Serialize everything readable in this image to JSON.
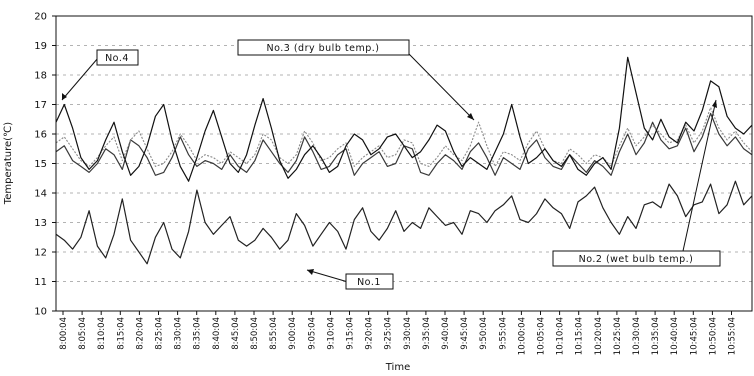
{
  "chart_data": {
    "type": "line",
    "xlabel": "Time",
    "ylabel": "Temperature(℃)",
    "ylim": [
      10,
      20
    ],
    "yticks": [
      10,
      11,
      12,
      13,
      14,
      15,
      16,
      17,
      18,
      19,
      20
    ],
    "grid": "dashed horizontal gridlines",
    "xticks": [
      "8:00:04",
      "8:05:04",
      "8:10:04",
      "8:15:04",
      "8:20:04",
      "8:25:04",
      "8:30:04",
      "8:35:04",
      "8:40:04",
      "8:45:04",
      "8:50:04",
      "8:55:04",
      "9:00:04",
      "9:05:04",
      "9:10:04",
      "9:15:04",
      "9:20:04",
      "9:25:04",
      "9:30:04",
      "9:35:04",
      "9:40:04",
      "9:45:04",
      "9:50:04",
      "9:55:04",
      "10:00:04",
      "10:05:04",
      "10:10:04",
      "10:15:04",
      "10:20:04",
      "10:25:04",
      "10:30:04",
      "10:35:04",
      "10:40:04",
      "10:45:04",
      "10:50:04",
      "10:55:04"
    ],
    "series": [
      {
        "name": "No.1",
        "color": "#222222",
        "style": "solid",
        "values": [
          12.6,
          12.4,
          12.1,
          12.5,
          13.4,
          12.2,
          11.8,
          12.6,
          13.8,
          12.4,
          12.0,
          11.6,
          12.5,
          13.0,
          12.1,
          11.8,
          12.7,
          14.1,
          13.0,
          12.6,
          12.9,
          13.2,
          12.4,
          12.2,
          12.4,
          12.8,
          12.5,
          12.1,
          12.4,
          13.3,
          12.9,
          12.2,
          12.6,
          13.0,
          12.7,
          12.1,
          13.1,
          13.5,
          12.7,
          12.4,
          12.8,
          13.4,
          12.7,
          13.0,
          12.8,
          13.5,
          13.2,
          12.9,
          13.0,
          12.6,
          13.4,
          13.3,
          13.0,
          13.4,
          13.6,
          13.9,
          13.1,
          13.0,
          13.3,
          13.8,
          13.5,
          13.3,
          12.8,
          13.7,
          13.9,
          14.2,
          13.5,
          13.0,
          12.6,
          13.2,
          12.8,
          13.6,
          13.7,
          13.5,
          14.3,
          13.9,
          13.2,
          13.6,
          13.7,
          14.3,
          13.3,
          13.6,
          14.4,
          13.6,
          13.9
        ]
      },
      {
        "name": "No.2 (wet bulb temp.)",
        "color": "#3a3a3a",
        "style": "solid",
        "values": [
          15.4,
          15.6,
          15.1,
          14.9,
          14.7,
          15.0,
          15.5,
          15.3,
          14.8,
          15.8,
          15.6,
          15.2,
          14.6,
          14.7,
          15.2,
          15.9,
          15.3,
          14.9,
          15.1,
          15.0,
          14.8,
          15.3,
          14.9,
          14.7,
          15.1,
          15.8,
          15.4,
          15.0,
          14.7,
          15.1,
          15.9,
          15.4,
          14.8,
          14.9,
          15.3,
          15.5,
          14.6,
          15.0,
          15.2,
          15.4,
          14.9,
          15.0,
          15.6,
          15.5,
          14.7,
          14.6,
          15.0,
          15.3,
          15.1,
          14.8,
          15.4,
          15.7,
          15.2,
          14.6,
          15.2,
          15.0,
          14.8,
          15.5,
          15.8,
          15.2,
          14.9,
          14.8,
          15.3,
          15.0,
          14.7,
          15.1,
          14.9,
          14.6,
          15.4,
          16.0,
          15.3,
          15.7,
          16.4,
          15.8,
          15.5,
          15.6,
          16.2,
          15.4,
          15.9,
          16.7,
          16.0,
          15.6,
          15.9,
          15.5,
          15.3
        ]
      },
      {
        "name": "No.3 (dry bulb temp.)",
        "color": "#8a8a8a",
        "style": "dotted",
        "values": [
          15.7,
          15.9,
          15.5,
          15.1,
          14.9,
          15.2,
          15.6,
          15.9,
          15.1,
          15.8,
          16.1,
          15.5,
          14.9,
          15.0,
          15.4,
          16.0,
          15.6,
          15.1,
          15.3,
          15.2,
          15.0,
          15.4,
          15.2,
          15.0,
          15.3,
          16.0,
          15.8,
          15.2,
          15.0,
          15.3,
          16.1,
          15.7,
          15.1,
          15.2,
          15.5,
          15.7,
          14.9,
          15.2,
          15.4,
          15.6,
          15.2,
          15.3,
          15.8,
          15.7,
          15.0,
          14.9,
          15.2,
          15.6,
          15.3,
          15.1,
          15.6,
          16.4,
          15.6,
          14.9,
          15.4,
          15.3,
          15.1,
          15.7,
          16.1,
          15.5,
          15.1,
          15.0,
          15.5,
          15.3,
          15.0,
          15.3,
          15.2,
          14.9,
          15.6,
          16.2,
          15.6,
          15.9,
          16.3,
          16.0,
          15.7,
          15.8,
          16.3,
          15.7,
          16.1,
          16.9,
          16.2,
          15.8,
          16.1,
          15.7,
          15.4
        ]
      },
      {
        "name": "No.4",
        "color": "#111111",
        "style": "solid",
        "values": [
          16.4,
          17.0,
          16.2,
          15.2,
          14.8,
          15.1,
          15.8,
          16.4,
          15.4,
          14.6,
          14.9,
          15.6,
          16.6,
          17.0,
          15.8,
          14.9,
          14.4,
          15.2,
          16.1,
          16.8,
          15.9,
          15.0,
          14.7,
          15.3,
          16.3,
          17.2,
          16.2,
          15.1,
          14.5,
          14.8,
          15.3,
          15.6,
          15.2,
          14.7,
          14.9,
          15.6,
          16.0,
          15.8,
          15.3,
          15.5,
          15.9,
          16.0,
          15.6,
          15.2,
          15.4,
          15.8,
          16.3,
          16.1,
          15.4,
          14.9,
          15.2,
          15.0,
          14.8,
          15.4,
          16.0,
          17.0,
          15.9,
          15.0,
          15.2,
          15.5,
          15.1,
          14.9,
          15.3,
          14.8,
          14.6,
          15.0,
          15.2,
          14.8,
          16.2,
          18.6,
          17.4,
          16.2,
          15.8,
          16.5,
          15.9,
          15.7,
          16.4,
          16.1,
          16.8,
          17.8,
          17.6,
          16.6,
          16.2,
          16.0,
          16.3
        ]
      }
    ],
    "annotations": [
      {
        "text": "No.4",
        "target": "No.4"
      },
      {
        "text": "No.3 (dry bulb temp.)",
        "target": "No.3 (dry bulb temp.)"
      },
      {
        "text": "No.1",
        "target": "No.1"
      },
      {
        "text": "No.2 (wet bulb temp.)",
        "target": "No.2 (wet bulb temp.)"
      }
    ]
  }
}
